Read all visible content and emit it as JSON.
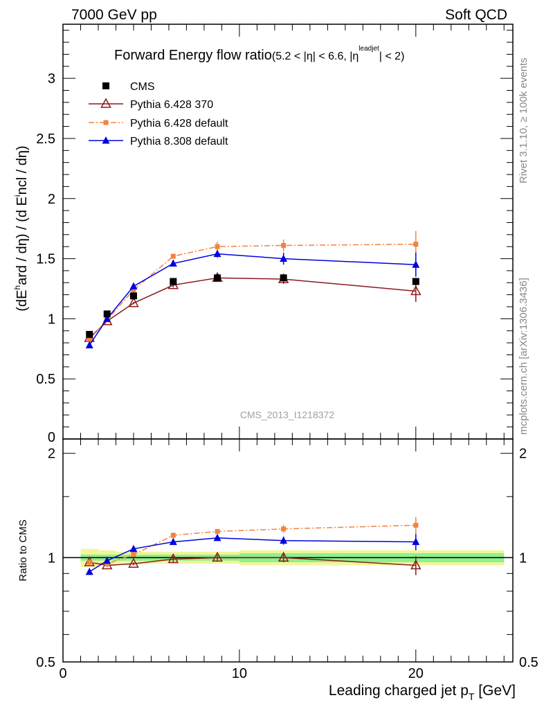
{
  "header": {
    "left": "7000 GeV pp",
    "right": "Soft QCD"
  },
  "side": {
    "top": "Rivet 3.1.10, ≥ 100k events",
    "bottom": "mcplots.cern.ch [arXiv:1306.3436]"
  },
  "chart_data": {
    "type": "line",
    "title": "Forward Energy flow ratio",
    "title_cut": "(5.2 < |η| < 6.6, |η",
    "title_sup": "leadjet",
    "title_end": "| < 2)",
    "watermark": "CMS_2013_I1218372",
    "ylabel": "(dE^hard / dη) / (d Eincl / dη)",
    "ylabel_parts": [
      "(dE",
      "h",
      "ard / dη) / (d E",
      "i",
      "ncl / dη)"
    ],
    "ratio_ylabel": "Ratio to CMS",
    "xlabel": "Leading charged jet p",
    "xlabel_sub": "T",
    "xlabel_unit": " [GeV]",
    "xlim": [
      0,
      25.5
    ],
    "ylim": [
      0,
      3.45
    ],
    "ratio_ylim": [
      0.5,
      2.2
    ],
    "x_ticks": [
      "0",
      "10",
      "20"
    ],
    "y_ticks": [
      "0.5",
      "1",
      "1.5",
      "2",
      "2.5",
      "3"
    ],
    "y_zero_tick": "0",
    "ratio_ticks": [
      "0.5",
      "1",
      "2"
    ],
    "x": [
      1.5,
      2.5,
      4.0,
      6.25,
      8.75,
      12.5,
      20.0
    ],
    "x_bins": [
      [
        1,
        2
      ],
      [
        2,
        3
      ],
      [
        3,
        5
      ],
      [
        5,
        7.5
      ],
      [
        7.5,
        10
      ],
      [
        10,
        15
      ],
      [
        15,
        25
      ]
    ],
    "series": [
      {
        "name": "CMS",
        "color": "#000000",
        "marker": "square",
        "line": "none",
        "values": [
          0.87,
          1.04,
          1.19,
          1.31,
          1.34,
          1.34,
          1.31
        ],
        "errors": [
          0.02,
          0.02,
          0.02,
          0.02,
          0.02,
          0.03,
          0.03
        ]
      },
      {
        "name": "Pythia 6.428 370",
        "color": "#8b1a1a",
        "marker": "triangle-open",
        "line": "solid",
        "values": [
          0.84,
          0.98,
          1.13,
          1.28,
          1.34,
          1.33,
          1.23
        ],
        "errors": [
          0.01,
          0.01,
          0.01,
          0.02,
          0.03,
          0.04,
          0.09
        ],
        "ratio": [
          0.97,
          0.95,
          0.96,
          0.99,
          1.0,
          1.0,
          0.95
        ],
        "ratio_err": [
          0.01,
          0.01,
          0.01,
          0.02,
          0.02,
          0.03,
          0.06
        ]
      },
      {
        "name": "Pythia 6.428 default",
        "color": "#f5813c",
        "marker": "square-small",
        "line": "dashdot",
        "values": [
          0.83,
          0.99,
          1.24,
          1.52,
          1.6,
          1.61,
          1.62
        ],
        "errors": [
          0.01,
          0.01,
          0.02,
          0.02,
          0.04,
          0.05,
          0.11
        ],
        "ratio": [
          0.97,
          0.96,
          1.02,
          1.16,
          1.19,
          1.21,
          1.24
        ],
        "ratio_err": [
          0.01,
          0.01,
          0.01,
          0.02,
          0.02,
          0.03,
          0.07
        ]
      },
      {
        "name": "Pythia 8.308 default",
        "color": "#0000dd",
        "marker": "triangle",
        "line": "solid",
        "values": [
          0.78,
          1.0,
          1.27,
          1.46,
          1.54,
          1.5,
          1.45
        ],
        "errors": [
          0.01,
          0.01,
          0.02,
          0.02,
          0.03,
          0.05,
          0.1
        ],
        "ratio": [
          0.91,
          0.98,
          1.06,
          1.11,
          1.14,
          1.12,
          1.11
        ],
        "ratio_err": [
          0.01,
          0.01,
          0.01,
          0.02,
          0.02,
          0.03,
          0.06
        ]
      }
    ],
    "ratio_band_inner": [
      0.02,
      0.02,
      0.02,
      0.02,
      0.02,
      0.03,
      0.03
    ],
    "ratio_band_outer": [
      0.06,
      0.05,
      0.04,
      0.04,
      0.04,
      0.05,
      0.05
    ]
  }
}
